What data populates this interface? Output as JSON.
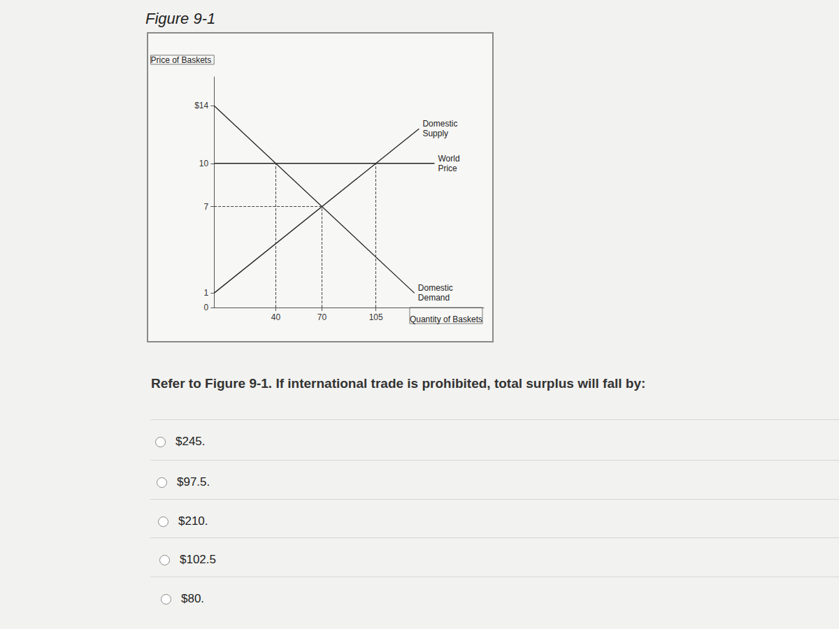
{
  "figure_title": "Figure 9-1",
  "chart_data": {
    "type": "line",
    "x_label": "Quantity of Baskets",
    "y_label": "Price of Baskets",
    "xlim": [
      0,
      175
    ],
    "ylim": [
      0,
      16
    ],
    "xticks": [
      40,
      70,
      105
    ],
    "yticks": [
      0,
      1,
      7,
      10,
      {
        "value": 14,
        "label": "$14"
      }
    ],
    "grid": false,
    "color": "#222222",
    "series": [
      {
        "name": "Domestic Supply",
        "x": [
          0,
          133
        ],
        "values": [
          1,
          12.4
        ]
      },
      {
        "name": "World Price",
        "x": [
          0,
          143
        ],
        "values": [
          10,
          10
        ]
      },
      {
        "name": "Domestic Demand",
        "x": [
          0,
          130
        ],
        "values": [
          14,
          1
        ]
      }
    ],
    "x_guides": [
      {
        "x": 40,
        "to": 10
      },
      {
        "x": 70,
        "to": 7
      },
      {
        "x": 105,
        "to": 10
      }
    ],
    "y_guides": [
      {
        "y": 7,
        "to": 70
      }
    ]
  },
  "question": "Refer to Figure 9-1. If international trade is prohibited, total surplus will fall by:",
  "options": [
    "$245.",
    "$97.5.",
    "$210.",
    "$102.5",
    "$80."
  ]
}
